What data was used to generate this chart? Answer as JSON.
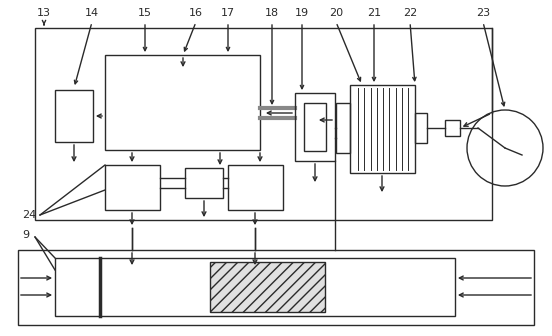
{
  "fig_width": 5.52,
  "fig_height": 3.36,
  "dpi": 100,
  "lc": "#2a2a2a",
  "bg": "#ffffff",
  "lw": 1.0
}
